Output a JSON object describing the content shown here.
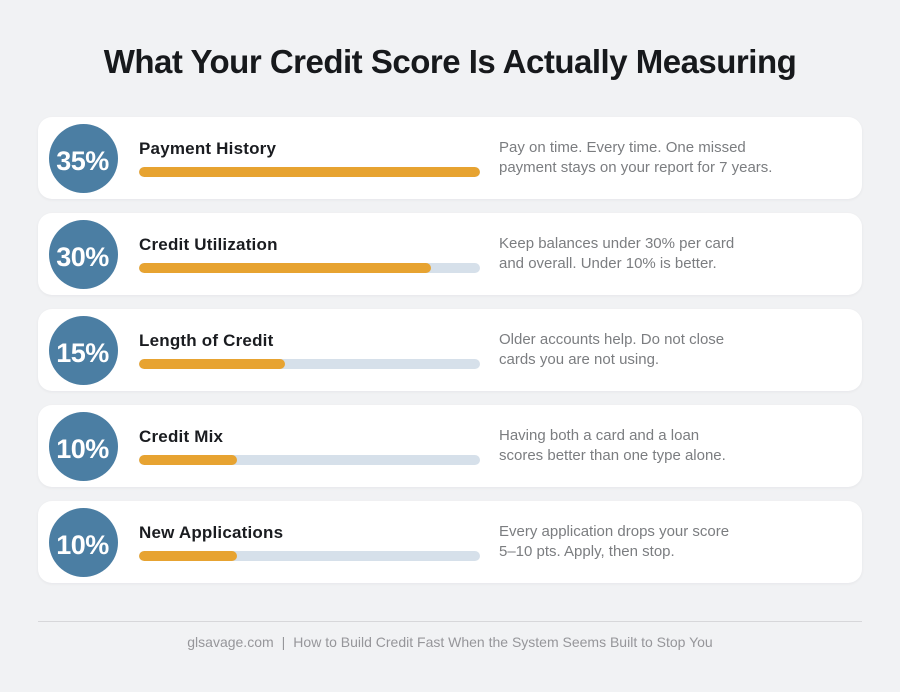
{
  "title": "What Your Credit Score Is Actually Measuring",
  "colors": {
    "background": "#F1F2F4",
    "card": "#FFFFFF",
    "badge_blue": "#4B7EA3",
    "bar_fill_orange": "#E7A331",
    "bar_track": "#D6E0EA",
    "heading_text": "#17191C",
    "description_text": "#7B7D80",
    "footer_text": "#96969A"
  },
  "chart_data": {
    "type": "bar",
    "orientation": "horizontal",
    "title": "What Your Credit Score Is Actually Measuring",
    "categories": [
      "Payment History",
      "Credit Utilization",
      "Length of Credit",
      "Credit Mix",
      "New Applications"
    ],
    "values": [
      35,
      30,
      15,
      10,
      10
    ],
    "value_unit": "%",
    "bar_scale_max": 35,
    "grid": false,
    "legend": false,
    "annotations": [
      "Pay on time. Every time. One missed payment stays on your report for 7 years.",
      "Keep balances under 30% per card and overall. Under 10% is better.",
      "Older accounts help. Do not close cards you are not using.",
      "Having both a card and a loan scores better than one type alone.",
      "Every application drops your score 5–10 pts. Apply, then stop."
    ]
  },
  "rows": [
    {
      "percent_label": "35%",
      "value": 35,
      "fill_pct": 100,
      "title": "Payment History",
      "desc_lines": [
        "Pay on time. Every time. One missed",
        "payment stays on your report for 7 years."
      ]
    },
    {
      "percent_label": "30%",
      "value": 30,
      "fill_pct": 85.7,
      "title": "Credit Utilization",
      "desc_lines": [
        "Keep balances under 30% per card",
        "and overall. Under 10% is better."
      ]
    },
    {
      "percent_label": "15%",
      "value": 15,
      "fill_pct": 42.9,
      "title": "Length of Credit",
      "desc_lines": [
        "Older accounts help. Do not close",
        "cards you are not using."
      ]
    },
    {
      "percent_label": "10%",
      "value": 10,
      "fill_pct": 28.6,
      "title": "Credit Mix",
      "desc_lines": [
        "Having both a card and a loan",
        "scores better than one type alone."
      ]
    },
    {
      "percent_label": "10%",
      "value": 10,
      "fill_pct": 28.6,
      "title": "New Applications",
      "desc_lines": [
        "Every application drops your score",
        "5–10 pts. Apply, then stop."
      ]
    }
  ],
  "footer": {
    "site": "glsavage.com",
    "separator": "|",
    "article": "How to Build Credit Fast When the System Seems Built to Stop You"
  }
}
